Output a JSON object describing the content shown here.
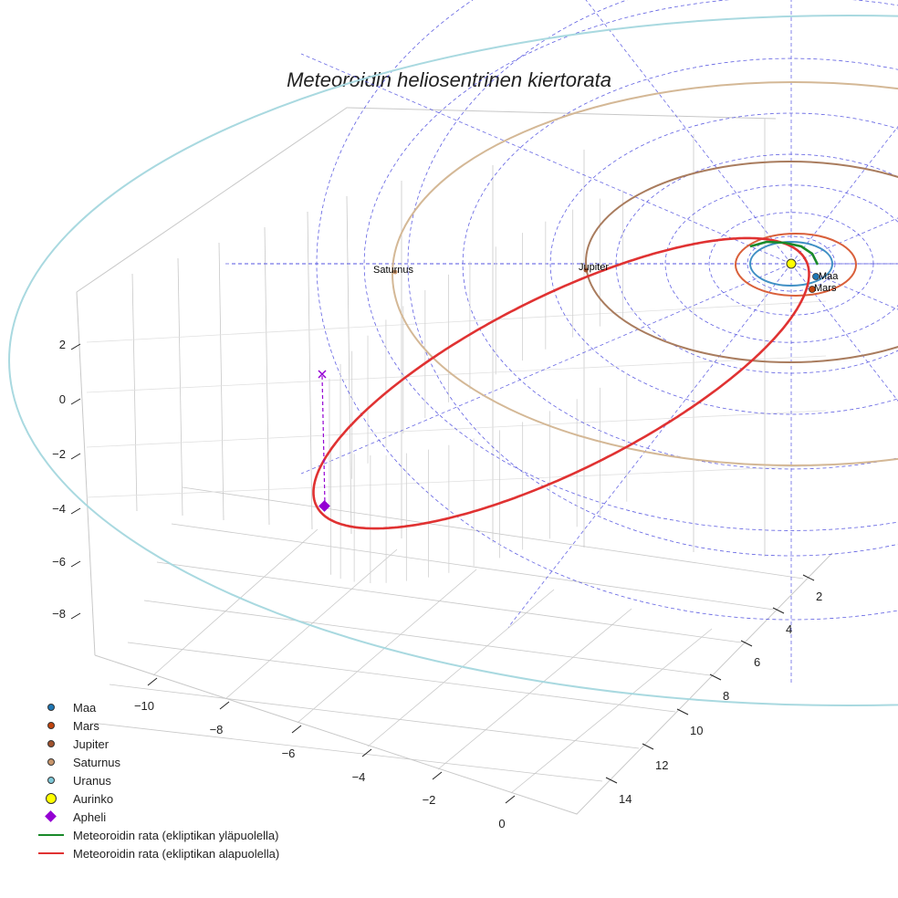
{
  "chart_data": {
    "type": "line",
    "title": "Meteoroidin heliosentrinen kiertorata",
    "axes": {
      "x": {
        "ticks": [
          -10,
          -8,
          -6,
          -4,
          -2,
          0
        ]
      },
      "y": {
        "ticks": [
          2,
          4,
          6,
          8,
          10,
          12,
          14
        ]
      },
      "z": {
        "ticks": [
          2,
          0,
          -2,
          -4,
          -6,
          -8
        ]
      }
    },
    "grid": true,
    "legend_position": "bottom-left",
    "planet_labels": [
      "Maa",
      "Mars",
      "Jupiter",
      "Saturnus"
    ],
    "orbit_colors": {
      "Maa": "#3f8fc4",
      "Mars": "#d9603b",
      "Jupiter": "#a97c5e",
      "Saturnus": "#d4b896",
      "Uranus": "#a9d9e0"
    },
    "trajectory_colors": {
      "above": "#1a8a2a",
      "below": "#e03232"
    },
    "aphelion_color": "#9400d3",
    "sun_color": "#ffff00",
    "legend": [
      {
        "label": "Maa",
        "symbol": "dot",
        "color": "#1f77b4"
      },
      {
        "label": "Mars",
        "symbol": "dot",
        "color": "#c1440e"
      },
      {
        "label": "Jupiter",
        "symbol": "dot",
        "color": "#a0522d"
      },
      {
        "label": "Saturnus",
        "symbol": "dot",
        "color": "#c8956b"
      },
      {
        "label": "Uranus",
        "symbol": "dot",
        "color": "#7ec8d8"
      },
      {
        "label": "Aurinko",
        "symbol": "big",
        "color": "#ffff00"
      },
      {
        "label": "Apheli",
        "symbol": "diamond",
        "color": "#9400d3"
      },
      {
        "label": "Meteoroidin rata (ekliptikan yläpuolella)",
        "symbol": "line",
        "color": "#1a8a2a"
      },
      {
        "label": "Meteoroidin rata (ekliptikan alapuolella)",
        "symbol": "line",
        "color": "#e03232"
      }
    ]
  }
}
